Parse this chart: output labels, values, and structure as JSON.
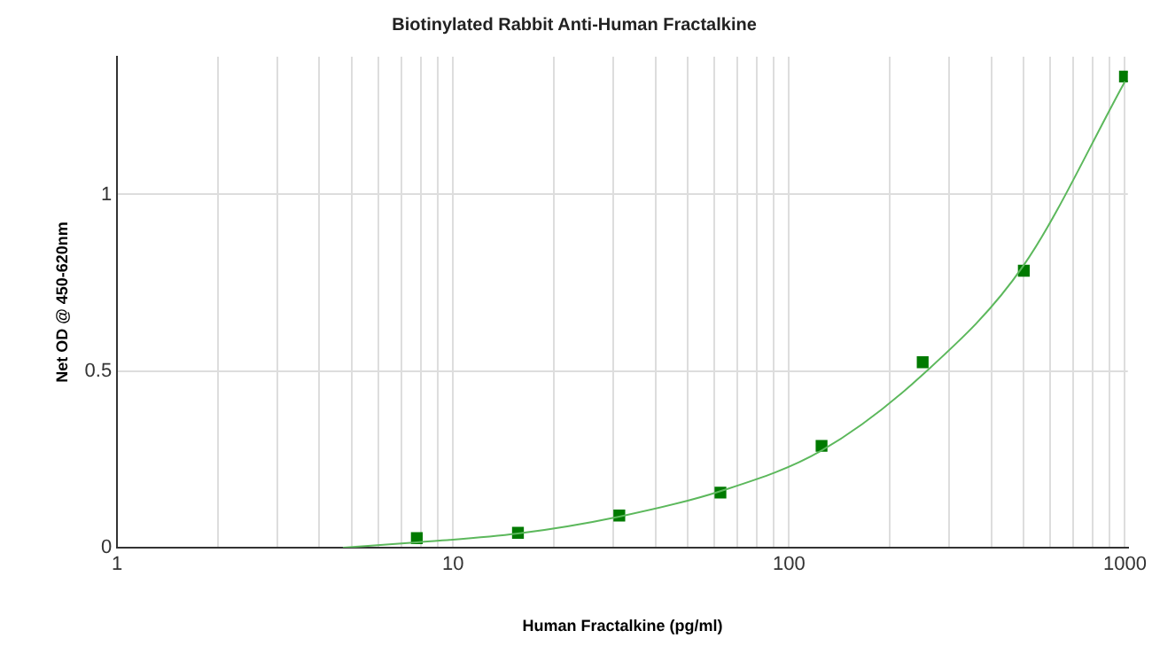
{
  "chart_data": {
    "type": "scatter",
    "title": "Biotinylated Rabbit Anti-Human Fractalkine",
    "xlabel": "Human Fractalkine (pg/ml)",
    "ylabel": "Net OD @ 450-620nm",
    "log": "x",
    "grid": true,
    "xlim": [
      1,
      1020
    ],
    "ylim": [
      0,
      1.39
    ],
    "xticks": [
      1,
      {
        "value": 2,
        "label": null
      },
      {
        "value": 3,
        "label": null
      },
      {
        "value": 4,
        "label": null
      },
      {
        "value": 5,
        "label": null
      },
      {
        "value": 6,
        "label": null
      },
      {
        "value": 7,
        "label": null
      },
      {
        "value": 8,
        "label": null
      },
      {
        "value": 9,
        "label": null
      },
      10,
      {
        "value": 20,
        "label": null
      },
      {
        "value": 30,
        "label": null
      },
      {
        "value": 40,
        "label": null
      },
      {
        "value": 50,
        "label": null
      },
      {
        "value": 60,
        "label": null
      },
      {
        "value": 70,
        "label": null
      },
      {
        "value": 80,
        "label": null
      },
      {
        "value": 90,
        "label": null
      },
      100,
      {
        "value": 200,
        "label": null
      },
      {
        "value": 300,
        "label": null
      },
      {
        "value": 400,
        "label": null
      },
      {
        "value": 500,
        "label": null
      },
      {
        "value": 600,
        "label": null
      },
      {
        "value": 700,
        "label": null
      },
      {
        "value": 800,
        "label": null
      },
      {
        "value": 900,
        "label": null
      },
      1000
    ],
    "yticks": [
      0,
      0.5,
      1
    ],
    "series": [
      {
        "type": "line",
        "color": "#5cb85c",
        "marker": "none",
        "line_style": "solid",
        "x": [
          4.7,
          7.8,
          15.6,
          31.25,
          62.5,
          125,
          250,
          500,
          1000
        ],
        "values": [
          0,
          0.015,
          0.04,
          0.088,
          0.16,
          0.275,
          0.49,
          0.8,
          1.32
        ]
      },
      {
        "type": "scatter",
        "color": "#007a00",
        "marker": "square",
        "x": [
          7.8,
          15.6,
          31.25,
          62.5,
          125,
          250,
          500,
          1000
        ],
        "values": [
          0.027,
          0.042,
          0.091,
          0.156,
          0.288,
          0.525,
          0.784,
          1.334
        ]
      }
    ]
  }
}
